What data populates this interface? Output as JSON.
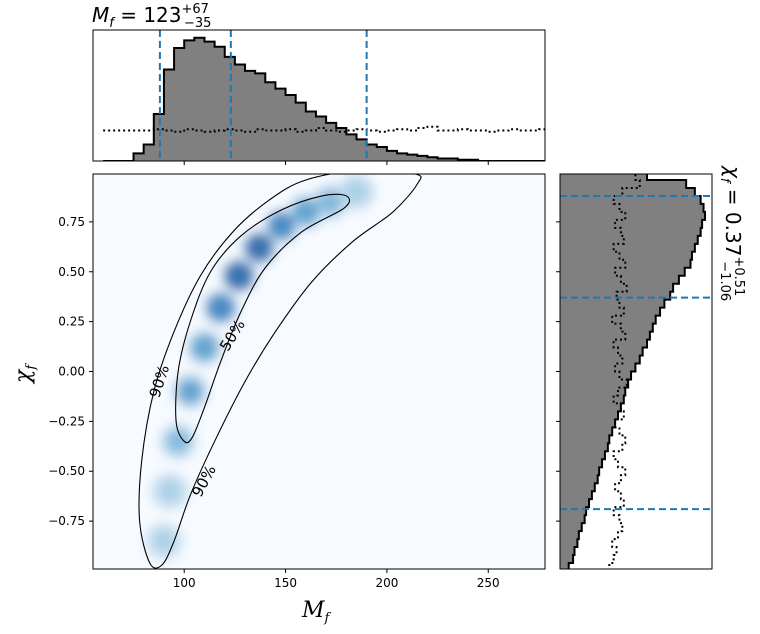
{
  "chart_data": [
    {
      "type": "heatmap",
      "xlabel": "M",
      "xlabel_sub": "f",
      "ylabel": "χ",
      "ylabel_sub": "f",
      "xlim": [
        55,
        278
      ],
      "ylim": [
        -0.99,
        0.99
      ],
      "xticks": [
        {
          "v": 100,
          "label": "100"
        },
        {
          "v": 150,
          "label": "150"
        },
        {
          "v": 200,
          "label": "200"
        },
        {
          "v": 250,
          "label": "250"
        }
      ],
      "yticks": [
        {
          "v": 0.75,
          "label": "0.75"
        },
        {
          "v": 0.5,
          "label": "0.50"
        },
        {
          "v": 0.25,
          "label": "0.25"
        },
        {
          "v": 0.0,
          "label": "0.00"
        },
        {
          "v": -0.25,
          "label": "−0.25"
        },
        {
          "v": -0.5,
          "label": "−0.50"
        },
        {
          "v": -0.75,
          "label": "−0.75"
        }
      ],
      "colormap": "Blues",
      "contours": [
        {
          "label": "50%",
          "outer": [
            [
              100,
              -0.35
            ],
            [
              96,
              -0.25
            ],
            [
              97,
              0.0
            ],
            [
              103,
              0.25
            ],
            [
              113,
              0.5
            ],
            [
              128,
              0.68
            ],
            [
              148,
              0.81
            ],
            [
              168,
              0.88
            ],
            [
              180,
              0.88
            ],
            [
              179,
              0.82
            ],
            [
              158,
              0.7
            ],
            [
              140,
              0.52
            ],
            [
              128,
              0.3
            ],
            [
              118,
              0.05
            ],
            [
              110,
              -0.18
            ],
            [
              104,
              -0.33
            ]
          ]
        },
        {
          "label": "90%",
          "outer": [
            [
              83,
              -0.96
            ],
            [
              78,
              -0.75
            ],
            [
              79,
              -0.45
            ],
            [
              85,
              -0.1
            ],
            [
              95,
              0.2
            ],
            [
              108,
              0.48
            ],
            [
              124,
              0.7
            ],
            [
              142,
              0.86
            ],
            [
              160,
              0.96
            ],
            [
              188,
              1.01
            ],
            [
              214,
              0.99
            ],
            [
              215,
              0.94
            ],
            [
              203,
              0.8
            ],
            [
              183,
              0.65
            ],
            [
              163,
              0.45
            ],
            [
              145,
              0.2
            ],
            [
              130,
              -0.05
            ],
            [
              115,
              -0.35
            ],
            [
              103,
              -0.62
            ],
            [
              95,
              -0.85
            ],
            [
              89,
              -0.97
            ]
          ]
        }
      ],
      "contour_labels": [
        {
          "text": "90%",
          "x": 88,
          "y": -0.05,
          "rot": -72
        },
        {
          "text": "50%",
          "x": 124,
          "y": 0.18,
          "rot": -58
        },
        {
          "text": "90%",
          "x": 110,
          "y": -0.55,
          "rot": -62
        }
      ]
    },
    {
      "type": "area",
      "title_main": "M",
      "title_sub": "f",
      "title_value": "123",
      "title_plus": "+67",
      "title_minus": "−35",
      "xlim": [
        55,
        278
      ],
      "bin_start": 60,
      "bin_width": 5,
      "values": [
        0.0,
        0.0,
        0.0,
        0.06,
        0.13,
        0.37,
        0.72,
        0.89,
        0.95,
        0.97,
        0.94,
        0.9,
        0.82,
        0.76,
        0.71,
        0.69,
        0.62,
        0.57,
        0.52,
        0.46,
        0.39,
        0.35,
        0.3,
        0.26,
        0.21,
        0.17,
        0.13,
        0.11,
        0.08,
        0.06,
        0.05,
        0.04,
        0.03,
        0.02,
        0.02,
        0.01,
        0.01,
        0.0,
        0.0,
        0.0,
        0.0,
        0.0,
        0.0,
        0.0
      ],
      "prior": [
        0.24,
        0.24,
        0.24,
        0.24,
        0.24,
        0.25,
        0.24,
        0.23,
        0.25,
        0.24,
        0.23,
        0.24,
        0.25,
        0.24,
        0.23,
        0.25,
        0.24,
        0.24,
        0.25,
        0.23,
        0.24,
        0.26,
        0.24,
        0.23,
        0.24,
        0.25,
        0.24,
        0.23,
        0.24,
        0.25,
        0.24,
        0.26,
        0.27,
        0.24,
        0.24,
        0.25,
        0.24,
        0.24,
        0.23,
        0.24,
        0.25,
        0.24,
        0.24,
        0.25
      ],
      "quantile_lines": [
        88,
        123,
        190
      ],
      "fill_color": "#808080",
      "line_color": "#1f77b4"
    },
    {
      "type": "area",
      "orientation": "horizontal",
      "title_main": "χ",
      "title_sub": "f",
      "title_value": "0.37",
      "title_plus": "+0.51",
      "title_minus": "−1.06",
      "ylim": [
        -0.99,
        0.99
      ],
      "bin_start": -1.0,
      "bin_width": 0.04,
      "values": [
        0.06,
        0.09,
        0.1,
        0.12,
        0.13,
        0.15,
        0.17,
        0.18,
        0.2,
        0.22,
        0.24,
        0.26,
        0.27,
        0.29,
        0.31,
        0.33,
        0.34,
        0.36,
        0.38,
        0.4,
        0.42,
        0.44,
        0.45,
        0.47,
        0.49,
        0.52,
        0.55,
        0.57,
        0.6,
        0.62,
        0.64,
        0.66,
        0.69,
        0.72,
        0.76,
        0.78,
        0.82,
        0.86,
        0.9,
        0.91,
        0.93,
        0.95,
        0.97,
        0.98,
        1.0,
        0.99,
        0.97,
        0.93,
        0.87,
        0.6
      ],
      "prior": [
        0.34,
        0.37,
        0.39,
        0.36,
        0.4,
        0.43,
        0.41,
        0.37,
        0.44,
        0.42,
        0.38,
        0.42,
        0.45,
        0.4,
        0.37,
        0.43,
        0.45,
        0.41,
        0.38,
        0.44,
        0.42,
        0.37,
        0.4,
        0.46,
        0.41,
        0.38,
        0.43,
        0.4,
        0.37,
        0.45,
        0.42,
        0.36,
        0.44,
        0.41,
        0.39,
        0.46,
        0.42,
        0.38,
        0.45,
        0.41,
        0.37,
        0.44,
        0.42,
        0.38,
        0.45,
        0.41,
        0.37,
        0.43,
        0.55,
        0.52
      ],
      "quantile_lines": [
        -0.69,
        0.37,
        0.88
      ],
      "fill_color": "#808080",
      "line_color": "#1f77b4"
    }
  ]
}
